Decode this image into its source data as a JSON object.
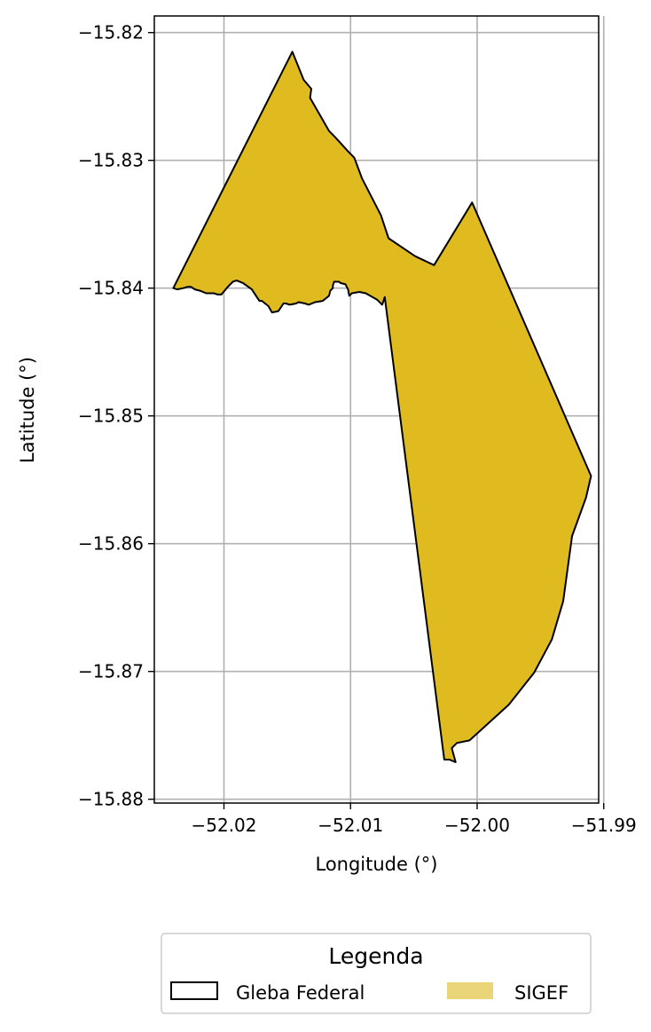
{
  "chart_data": {
    "type": "map",
    "xlabel": "Longitude (°)",
    "ylabel": "Latitude (°)",
    "xlim": [
      -52.0255,
      -51.9904
    ],
    "ylim": [
      -15.8803,
      -15.8187
    ],
    "xticks": [
      -52.02,
      -52.01,
      -52.0,
      -51.99
    ],
    "xtick_labels": [
      "−52.02",
      "−52.01",
      "−52.00",
      "−51.99"
    ],
    "yticks": [
      -15.82,
      -15.83,
      -15.84,
      -15.85,
      -15.86,
      -15.87,
      -15.88
    ],
    "ytick_labels": [
      "−15.82",
      "−15.83",
      "−15.84",
      "−15.85",
      "−15.86",
      "−15.87",
      "−15.88"
    ],
    "grid": true,
    "legend": {
      "title": "Legenda",
      "placement": "bottom-center",
      "entries": [
        {
          "label": "Gleba Federal",
          "style": "outline",
          "edge_color": "#000000"
        },
        {
          "label": "SIGEF",
          "style": "fill",
          "color": "#ebd579"
        }
      ]
    },
    "layers": [
      {
        "name": "SIGEF",
        "fill": "#dfbb20",
        "stroke": "#000000",
        "polygon": [
          [
            -52.0146,
            -15.8215
          ],
          [
            -52.0137,
            -15.8237
          ],
          [
            -52.0131,
            -15.8244
          ],
          [
            -52.0132,
            -15.8251
          ],
          [
            -52.0117,
            -15.8277
          ],
          [
            -52.0112,
            -15.8282
          ],
          [
            -52.0102,
            -15.8293
          ],
          [
            -52.0097,
            -15.8298
          ],
          [
            -52.0091,
            -15.8314
          ],
          [
            -52.0076,
            -15.8343
          ],
          [
            -52.007,
            -15.8361
          ],
          [
            -52.0049,
            -15.8375
          ],
          [
            -52.0034,
            -15.8382
          ],
          [
            -52.0004,
            -15.8333
          ],
          [
            -51.991,
            -15.8547
          ],
          [
            -51.9914,
            -15.8564
          ],
          [
            -51.9925,
            -15.8594
          ],
          [
            -51.9932,
            -15.8645
          ],
          [
            -51.9941,
            -15.8675
          ],
          [
            -51.9955,
            -15.8701
          ],
          [
            -51.9975,
            -15.8726
          ],
          [
            -52.0006,
            -15.8754
          ],
          [
            -52.0016,
            -15.8756
          ],
          [
            -52.002,
            -15.876
          ],
          [
            -52.0017,
            -15.8771
          ],
          [
            -52.0022,
            -15.8769
          ],
          [
            -52.0026,
            -15.8769
          ],
          [
            -52.0073,
            -15.8407
          ],
          [
            -52.0075,
            -15.8413
          ],
          [
            -52.0075,
            -15.8413
          ],
          [
            -52.0079,
            -15.8409
          ],
          [
            -52.0088,
            -15.8404
          ],
          [
            -52.0093,
            -15.8403
          ],
          [
            -52.0099,
            -15.8404
          ],
          [
            -52.0101,
            -15.8406
          ],
          [
            -52.0102,
            -15.8401
          ],
          [
            -52.0104,
            -15.8397
          ],
          [
            -52.0104,
            -15.8397
          ],
          [
            -52.0108,
            -15.8396
          ],
          [
            -52.0109,
            -15.8395
          ],
          [
            -52.0113,
            -15.8395
          ],
          [
            -52.0114,
            -15.8398
          ],
          [
            -52.0114,
            -15.84
          ],
          [
            -52.0116,
            -15.8402
          ],
          [
            -52.0117,
            -15.8406
          ],
          [
            -52.0122,
            -15.841
          ],
          [
            -52.0128,
            -15.8411
          ],
          [
            -52.0133,
            -15.8413
          ],
          [
            -52.0136,
            -15.8412
          ],
          [
            -52.0141,
            -15.8411
          ],
          [
            -52.0143,
            -15.8412
          ],
          [
            -52.0148,
            -15.8413
          ],
          [
            -52.0151,
            -15.8412
          ],
          [
            -52.0153,
            -15.8412
          ],
          [
            -52.0157,
            -15.8418
          ],
          [
            -52.0162,
            -15.8419
          ],
          [
            -52.0165,
            -15.8414
          ],
          [
            -52.017,
            -15.841
          ],
          [
            -52.0172,
            -15.841
          ],
          [
            -52.0174,
            -15.8407
          ],
          [
            -52.0178,
            -15.8401
          ],
          [
            -52.0185,
            -15.8396
          ],
          [
            -52.019,
            -15.8394
          ],
          [
            -52.0193,
            -15.8395
          ],
          [
            -52.0197,
            -15.8399
          ],
          [
            -52.0202,
            -15.8405
          ],
          [
            -52.0205,
            -15.8405
          ],
          [
            -52.0208,
            -15.8404
          ],
          [
            -52.0214,
            -15.8404
          ],
          [
            -52.0219,
            -15.8402
          ],
          [
            -52.0223,
            -15.8401
          ],
          [
            -52.0226,
            -15.8399
          ],
          [
            -52.0229,
            -15.8399
          ],
          [
            -52.0232,
            -15.84
          ],
          [
            -52.0237,
            -15.8401
          ],
          [
            -52.024,
            -15.84
          ]
        ]
      }
    ]
  }
}
